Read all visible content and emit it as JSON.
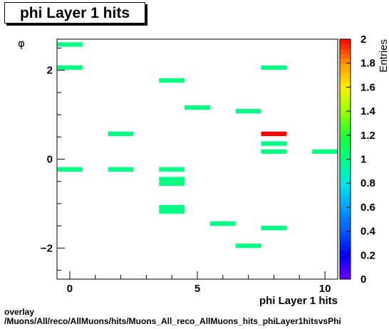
{
  "title": "phi Layer 1 hits",
  "footer": {
    "line1": "overlay",
    "line2": "/Muons/All/reco/AllMuons/hits/Muons_All_reco_AllMuons_hits_phiLayer1hitsvsPhi"
  },
  "chart_data": {
    "type": "heatmap",
    "xlabel": "phi Layer 1 hits",
    "ylabel": "φ",
    "zlabel": "Entries",
    "xlim": [
      -0.5,
      10.5
    ],
    "ylim": [
      -2.7,
      2.7
    ],
    "zlim": [
      0,
      2
    ],
    "x_ticks": [
      0,
      5,
      10
    ],
    "y_ticks": [
      -2,
      0,
      2
    ],
    "z_ticks": [
      "0",
      "0.2",
      "0.4",
      "0.6",
      "0.8",
      "1",
      "1.2",
      "1.4",
      "1.6",
      "1.8",
      "2"
    ],
    "bin_width_x": 1,
    "bin_height_y": 0.1,
    "bins": [
      {
        "x": 0,
        "y": 2.58,
        "value": 1
      },
      {
        "x": 0,
        "y": 2.06,
        "value": 1
      },
      {
        "x": 0,
        "y": -0.23,
        "value": 1
      },
      {
        "x": 2,
        "y": 0.57,
        "value": 1
      },
      {
        "x": 2,
        "y": -0.23,
        "value": 1
      },
      {
        "x": 4,
        "y": 1.77,
        "value": 1
      },
      {
        "x": 4,
        "y": -0.23,
        "value": 1
      },
      {
        "x": 4,
        "y": -0.45,
        "value": 1
      },
      {
        "x": 4,
        "y": -0.55,
        "value": 1
      },
      {
        "x": 4,
        "y": -1.08,
        "value": 1
      },
      {
        "x": 4,
        "y": -1.18,
        "value": 1
      },
      {
        "x": 5,
        "y": 1.16,
        "value": 1
      },
      {
        "x": 6,
        "y": -1.45,
        "value": 1
      },
      {
        "x": 7,
        "y": 1.08,
        "value": 1
      },
      {
        "x": 7,
        "y": -1.95,
        "value": 1
      },
      {
        "x": 8,
        "y": 2.06,
        "value": 1
      },
      {
        "x": 8,
        "y": 0.57,
        "value": 2
      },
      {
        "x": 8,
        "y": 0.35,
        "value": 1
      },
      {
        "x": 8,
        "y": 0.17,
        "value": 1
      },
      {
        "x": 8,
        "y": -1.55,
        "value": 1
      },
      {
        "x": 10,
        "y": 0.17,
        "value": 1
      }
    ]
  }
}
